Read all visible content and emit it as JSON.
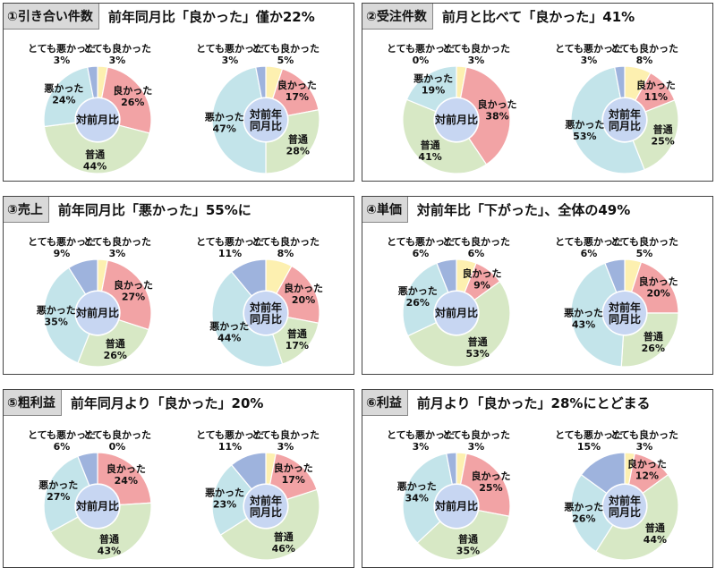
{
  "chart_data": [
    {
      "type": "pie",
      "tag": "①引き合い件数",
      "title": "前年同月比「良かった」僅か22%",
      "categories": [
        "とても良かった",
        "良かった",
        "普通",
        "悪かった",
        "とても悪かった"
      ],
      "pies": [
        {
          "center_label": "対前月比",
          "values": [
            3,
            26,
            44,
            24,
            3
          ],
          "labels": [
            "とても良かった",
            "良かった",
            "普通",
            "悪かった",
            "とても悪かった"
          ],
          "value_labels": [
            "3%",
            "26%",
            "44%",
            "24%",
            "3%"
          ]
        },
        {
          "center_label": "対前年同月比",
          "values": [
            5,
            17,
            28,
            47,
            3
          ],
          "labels": [
            "とても良かった",
            "良かった",
            "普通",
            "悪かった",
            "とても悪かった"
          ],
          "value_labels": [
            "5%",
            "17%",
            "28%",
            "47%",
            "3%"
          ]
        }
      ]
    },
    {
      "type": "pie",
      "tag": "②受注件数",
      "title": "前月と比べて「良かった」41%",
      "categories": [
        "とても良かった",
        "良かった",
        "普通",
        "悪かった",
        "とても悪かった"
      ],
      "pies": [
        {
          "center_label": "対前月比",
          "values": [
            3,
            38,
            41,
            19,
            0
          ],
          "labels": [
            "とても良かった",
            "良かった",
            "普通",
            "悪かった",
            "とても悪かった"
          ],
          "value_labels": [
            "3%",
            "38%",
            "41%",
            "19%",
            "0%"
          ]
        },
        {
          "center_label": "対前年同月比",
          "values": [
            8,
            11,
            25,
            53,
            3
          ],
          "labels": [
            "とても良かった",
            "良かった",
            "普通",
            "悪かった",
            "とても悪かった"
          ],
          "value_labels": [
            "8%",
            "11%",
            "25%",
            "53%",
            "3%"
          ]
        }
      ]
    },
    {
      "type": "pie",
      "tag": "③売上",
      "title": "前年同月比「悪かった」55%に",
      "categories": [
        "とても良かった",
        "良かった",
        "普通",
        "悪かった",
        "とても悪かった"
      ],
      "pies": [
        {
          "center_label": "対前月比",
          "values": [
            3,
            27,
            26,
            35,
            9
          ],
          "labels": [
            "とても良かった",
            "良かった",
            "普通",
            "悪かった",
            "とても悪かった"
          ],
          "value_labels": [
            "3%",
            "27%",
            "26%",
            "35%",
            "9%"
          ]
        },
        {
          "center_label": "対前年同月比",
          "values": [
            8,
            20,
            17,
            44,
            11
          ],
          "labels": [
            "とても良かった",
            "良かった",
            "普通",
            "悪かった",
            "とても悪かった"
          ],
          "value_labels": [
            "8%",
            "20%",
            "17%",
            "44%",
            "11%"
          ]
        }
      ]
    },
    {
      "type": "pie",
      "tag": "④単価",
      "title": "対前年比「下がった」、全体の49%",
      "categories": [
        "とても良かった",
        "良かった",
        "普通",
        "悪かった",
        "とても悪かった"
      ],
      "pies": [
        {
          "center_label": "対前月比",
          "values": [
            6,
            9,
            53,
            26,
            6
          ],
          "labels": [
            "とても良かった",
            "良かった",
            "普通",
            "悪かった",
            "とても悪かった"
          ],
          "value_labels": [
            "6%",
            "9%",
            "53%",
            "26%",
            "6%"
          ]
        },
        {
          "center_label": "対前年同月比",
          "values": [
            5,
            20,
            26,
            43,
            6
          ],
          "labels": [
            "とても良かった",
            "良かった",
            "普通",
            "悪かった",
            "とても悪かった"
          ],
          "value_labels": [
            "5%",
            "20%",
            "26%",
            "43%",
            "6%"
          ]
        }
      ]
    },
    {
      "type": "pie",
      "tag": "⑤粗利益",
      "title": "前年同月より「良かった」20%",
      "categories": [
        "とても良かった",
        "良かった",
        "普通",
        "悪かった",
        "とても悪かった"
      ],
      "pies": [
        {
          "center_label": "対前月比",
          "values": [
            0,
            24,
            43,
            27,
            6
          ],
          "labels": [
            "とても良かった",
            "良かった",
            "普通",
            "悪かった",
            "とても悪かった"
          ],
          "value_labels": [
            "0%",
            "24%",
            "43%",
            "27%",
            "6%"
          ]
        },
        {
          "center_label": "対前年同月比",
          "values": [
            3,
            17,
            46,
            23,
            11
          ],
          "labels": [
            "とても良かった",
            "良かった",
            "普通",
            "悪かった",
            "とても悪かった"
          ],
          "value_labels": [
            "3%",
            "17%",
            "46%",
            "23%",
            "11%"
          ]
        }
      ]
    },
    {
      "type": "pie",
      "tag": "⑥利益",
      "title": "前月より「良かった」28%にとどまる",
      "categories": [
        "とても良かった",
        "良かった",
        "普通",
        "悪かった",
        "とても悪かった"
      ],
      "pies": [
        {
          "center_label": "対前月比",
          "values": [
            3,
            25,
            35,
            34,
            3
          ],
          "labels": [
            "とても良かった",
            "良かった",
            "普通",
            "悪かった",
            "とても悪かった"
          ],
          "value_labels": [
            "3%",
            "25%",
            "35%",
            "34%",
            "3%"
          ]
        },
        {
          "center_label": "対前年同月比",
          "values": [
            3,
            12,
            44,
            26,
            15
          ],
          "labels": [
            "とても良かった",
            "良かった",
            "普通",
            "悪かった",
            "とても悪かった"
          ],
          "value_labels": [
            "3%",
            "12%",
            "44%",
            "26%",
            "15%"
          ]
        }
      ]
    }
  ],
  "colors": {
    "とても良かった": "#fdf0b0",
    "良かった": "#f2a3a5",
    "普通": "#d7e8c5",
    "悪かった": "#c3e4ea",
    "とても悪かった": "#9eb3dd",
    "center": "#c7d6f2",
    "ink": "#111111"
  }
}
